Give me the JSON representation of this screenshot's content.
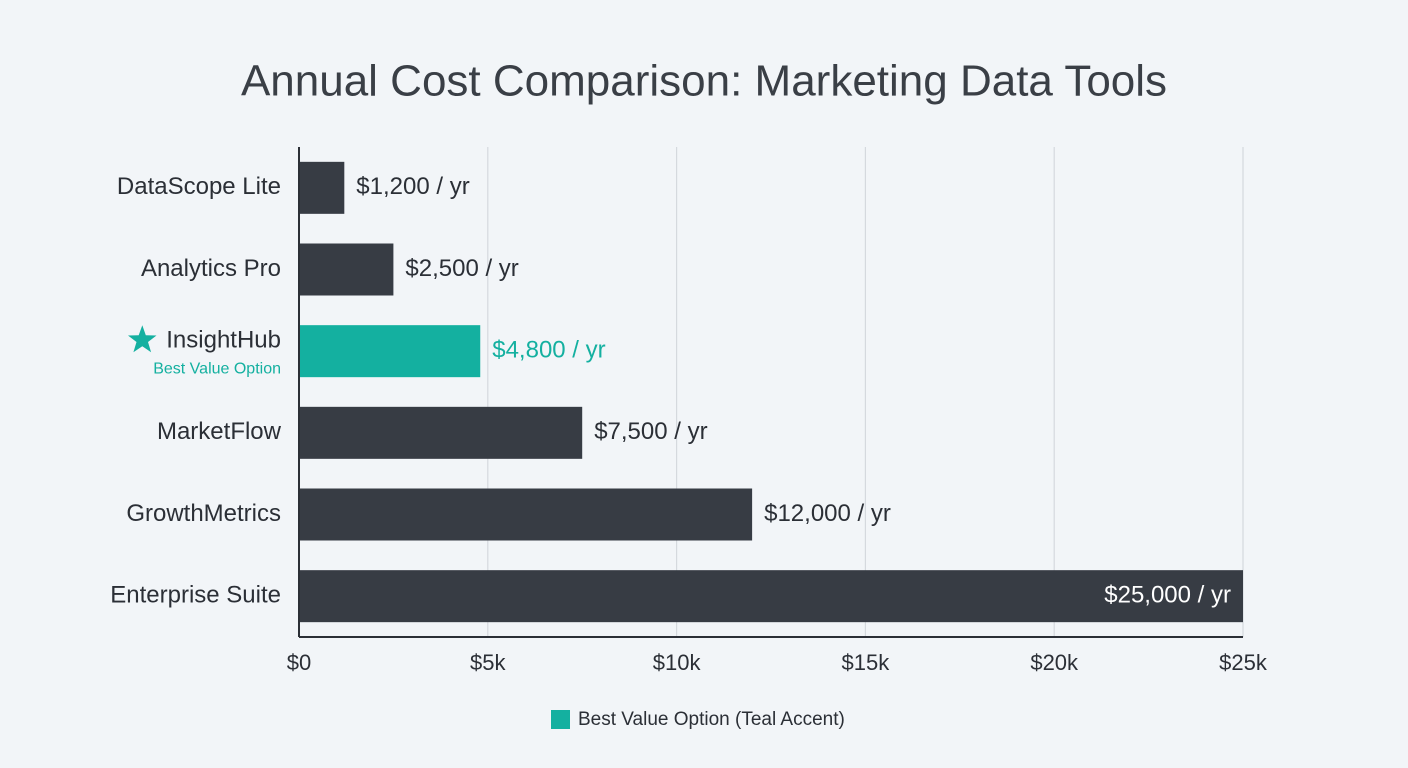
{
  "chart_data": {
    "type": "bar",
    "orientation": "horizontal",
    "title": "Annual Cost Comparison: Marketing Data Tools",
    "categories": [
      "DataScope Lite",
      "Analytics Pro",
      "InsightHub",
      "MarketFlow",
      "GrowthMetrics",
      "Enterprise Suite"
    ],
    "values": [
      1200,
      2500,
      4800,
      7500,
      12000,
      25000
    ],
    "value_labels": [
      "$1,200 / yr",
      "$2,500 / yr",
      "$4,800 / yr",
      "$7,500 / yr",
      "$12,000 / yr",
      "$25,000 / yr"
    ],
    "colors": [
      "#373c44",
      "#373c44",
      "#14b0a0",
      "#373c44",
      "#373c44",
      "#373c44"
    ],
    "annotation": "Best Value Option",
    "xlim": [
      0,
      25000
    ],
    "xticks": [
      {
        "value": 0,
        "label": "$0"
      },
      {
        "value": 5000,
        "label": "$5k"
      },
      {
        "value": 10000,
        "label": "$10k"
      },
      {
        "value": 15000,
        "label": "$15k"
      },
      {
        "value": 20000,
        "label": "$20k"
      },
      {
        "value": 25000,
        "label": "$25k"
      }
    ],
    "grid": true,
    "legend": {
      "label": "Best Value Option (Teal Accent)",
      "color": "#14b0a0"
    }
  }
}
